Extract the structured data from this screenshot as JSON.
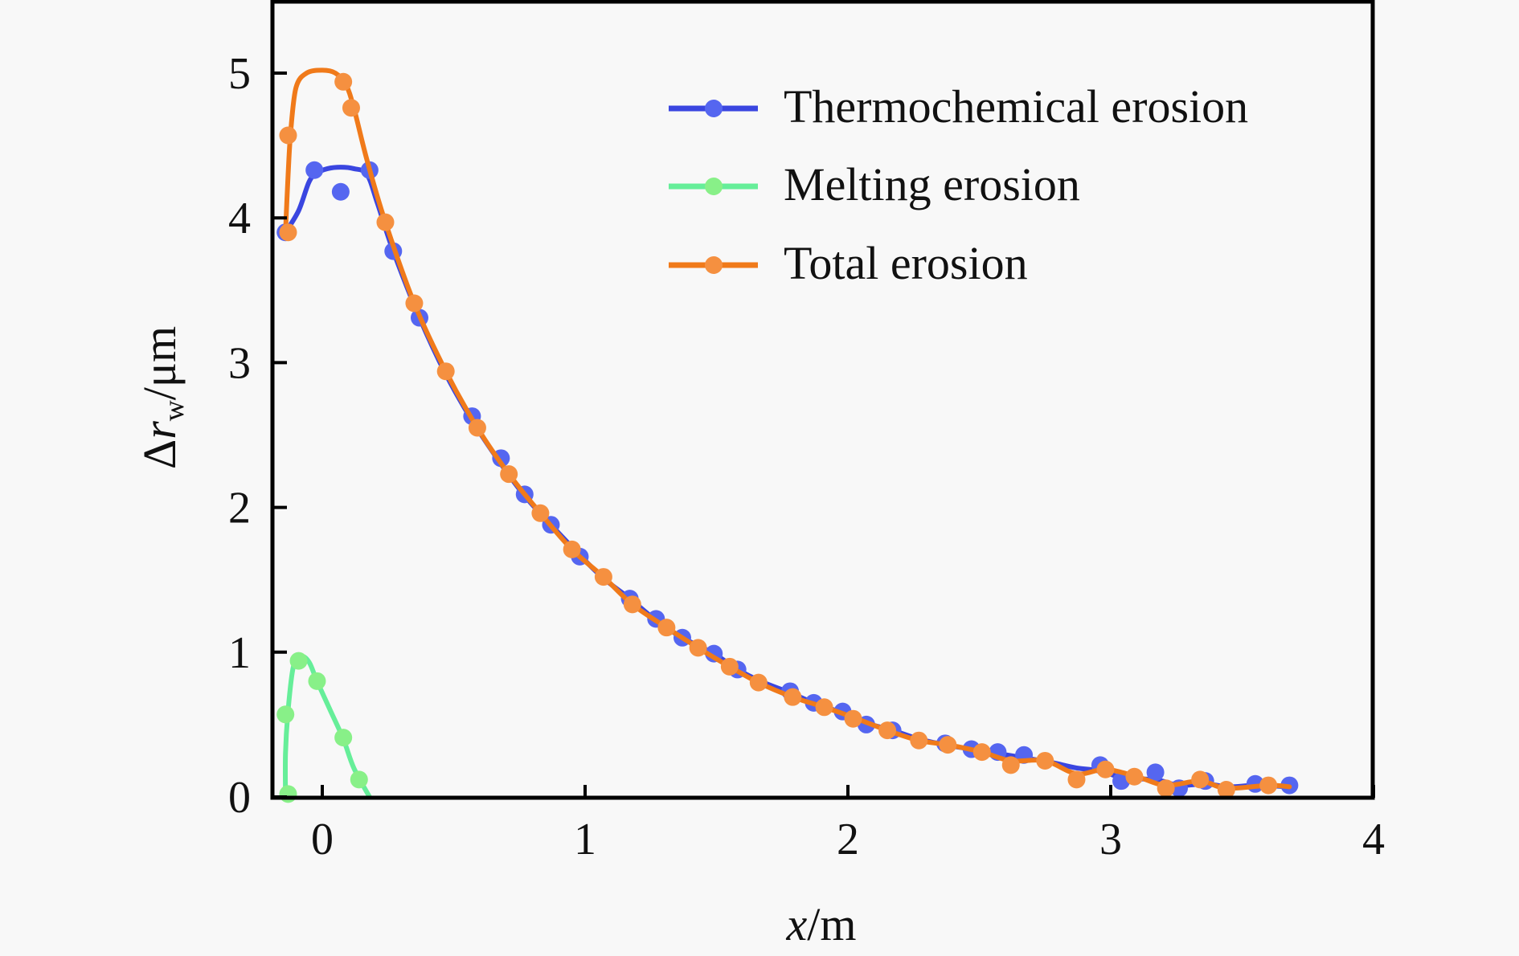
{
  "chart_data": {
    "type": "line",
    "title": "",
    "xlabel": "x/m",
    "xlabel_parts": {
      "var": "x",
      "unit": "/m"
    },
    "ylabel": "Δr_w/μm",
    "ylabel_parts": {
      "delta": "Δ",
      "var": "r",
      "sub": "w",
      "unit": "/μm"
    },
    "xlim": [
      -0.2,
      4
    ],
    "ylim": [
      0,
      5.5
    ],
    "xticks": [
      0,
      1,
      2,
      3,
      4
    ],
    "xtick_labels": [
      "0",
      "1",
      "2",
      "3",
      "4"
    ],
    "yticks": [
      0,
      1,
      2,
      3,
      4,
      5
    ],
    "ytick_labels": [
      "0",
      "1",
      "2",
      "3",
      "4",
      "5"
    ],
    "grid": false,
    "legend_position": "top-right",
    "series": [
      {
        "name": "Thermochemical erosion",
        "line_color": "#3a46e0",
        "marker_color": "#5566f0",
        "curve": [
          [
            -0.14,
            3.9
          ],
          [
            -0.09,
            4.05
          ],
          [
            -0.05,
            4.25
          ],
          [
            -0.02,
            4.31
          ],
          [
            0.02,
            4.34
          ],
          [
            0.07,
            4.35
          ],
          [
            0.12,
            4.34
          ],
          [
            0.17,
            4.3
          ],
          [
            0.21,
            4.1
          ],
          [
            0.27,
            3.77
          ],
          [
            0.37,
            3.31
          ],
          [
            0.47,
            2.92
          ],
          [
            0.57,
            2.6
          ],
          [
            0.68,
            2.3
          ],
          [
            0.77,
            2.08
          ],
          [
            0.87,
            1.88
          ],
          [
            0.98,
            1.67
          ],
          [
            1.07,
            1.51
          ],
          [
            1.17,
            1.37
          ],
          [
            1.27,
            1.22
          ],
          [
            1.37,
            1.1
          ],
          [
            1.49,
            0.99
          ],
          [
            1.58,
            0.88
          ],
          [
            1.68,
            0.79
          ],
          [
            1.78,
            0.72
          ],
          [
            1.87,
            0.65
          ],
          [
            1.98,
            0.58
          ],
          [
            2.07,
            0.51
          ],
          [
            2.17,
            0.46
          ],
          [
            2.27,
            0.4
          ],
          [
            2.37,
            0.36
          ],
          [
            2.47,
            0.33
          ],
          [
            2.57,
            0.3
          ],
          [
            2.67,
            0.27
          ],
          [
            2.77,
            0.24
          ],
          [
            2.87,
            0.2
          ],
          [
            2.96,
            0.18
          ],
          [
            3.05,
            0.13
          ],
          [
            3.17,
            0.12
          ],
          [
            3.26,
            0.08
          ],
          [
            3.36,
            0.09
          ],
          [
            3.45,
            0.07
          ],
          [
            3.55,
            0.08
          ],
          [
            3.68,
            0.07
          ]
        ],
        "points": [
          [
            -0.14,
            3.9
          ],
          [
            -0.03,
            4.33
          ],
          [
            0.07,
            4.18
          ],
          [
            0.18,
            4.33
          ],
          [
            0.27,
            3.77
          ],
          [
            0.37,
            3.31
          ],
          [
            0.57,
            2.63
          ],
          [
            0.68,
            2.34
          ],
          [
            0.77,
            2.09
          ],
          [
            0.87,
            1.88
          ],
          [
            0.98,
            1.66
          ],
          [
            1.17,
            1.37
          ],
          [
            1.27,
            1.23
          ],
          [
            1.37,
            1.1
          ],
          [
            1.49,
            0.99
          ],
          [
            1.58,
            0.88
          ],
          [
            1.78,
            0.73
          ],
          [
            1.87,
            0.65
          ],
          [
            1.98,
            0.59
          ],
          [
            2.07,
            0.5
          ],
          [
            2.17,
            0.46
          ],
          [
            2.37,
            0.37
          ],
          [
            2.47,
            0.33
          ],
          [
            2.57,
            0.31
          ],
          [
            2.67,
            0.29
          ],
          [
            2.96,
            0.22
          ],
          [
            3.04,
            0.11
          ],
          [
            3.17,
            0.17
          ],
          [
            3.26,
            0.06
          ],
          [
            3.36,
            0.11
          ],
          [
            3.55,
            0.09
          ],
          [
            3.68,
            0.08
          ]
        ]
      },
      {
        "name": "Melting erosion",
        "line_color": "#66ee99",
        "marker_color": "#88f088",
        "curve": [
          [
            -0.14,
            0.0
          ],
          [
            -0.14,
            0.3
          ],
          [
            -0.13,
            0.6
          ],
          [
            -0.11,
            0.9
          ],
          [
            -0.08,
            0.97
          ],
          [
            -0.05,
            0.93
          ],
          [
            -0.02,
            0.8
          ],
          [
            0.03,
            0.6
          ],
          [
            0.08,
            0.4
          ],
          [
            0.12,
            0.2
          ],
          [
            0.18,
            0.0
          ]
        ],
        "points": [
          [
            -0.13,
            0.02
          ],
          [
            -0.14,
            0.57
          ],
          [
            -0.09,
            0.94
          ],
          [
            -0.02,
            0.8
          ],
          [
            0.08,
            0.41
          ],
          [
            0.14,
            0.12
          ]
        ]
      },
      {
        "name": "Total erosion",
        "line_color": "#f07a1a",
        "marker_color": "#f59040",
        "curve": [
          [
            -0.14,
            3.9
          ],
          [
            -0.13,
            4.3
          ],
          [
            -0.12,
            4.6
          ],
          [
            -0.1,
            4.9
          ],
          [
            -0.06,
            5.0
          ],
          [
            0.0,
            5.02
          ],
          [
            0.05,
            5.0
          ],
          [
            0.09,
            4.92
          ],
          [
            0.12,
            4.76
          ],
          [
            0.17,
            4.4
          ],
          [
            0.24,
            3.97
          ],
          [
            0.35,
            3.41
          ],
          [
            0.47,
            2.94
          ],
          [
            0.59,
            2.55
          ],
          [
            0.71,
            2.23
          ],
          [
            0.83,
            1.96
          ],
          [
            0.95,
            1.71
          ],
          [
            1.07,
            1.52
          ],
          [
            1.18,
            1.33
          ],
          [
            1.31,
            1.17
          ],
          [
            1.43,
            1.03
          ],
          [
            1.55,
            0.9
          ],
          [
            1.66,
            0.79
          ],
          [
            1.79,
            0.69
          ],
          [
            1.91,
            0.62
          ],
          [
            2.02,
            0.55
          ],
          [
            2.15,
            0.46
          ],
          [
            2.27,
            0.39
          ],
          [
            2.38,
            0.36
          ],
          [
            2.51,
            0.31
          ],
          [
            2.62,
            0.25
          ],
          [
            2.75,
            0.25
          ],
          [
            2.87,
            0.16
          ],
          [
            2.98,
            0.19
          ],
          [
            3.1,
            0.14
          ],
          [
            3.21,
            0.08
          ],
          [
            3.34,
            0.11
          ],
          [
            3.44,
            0.06
          ],
          [
            3.6,
            0.08
          ],
          [
            3.68,
            0.07
          ]
        ],
        "points": [
          [
            -0.13,
            3.9
          ],
          [
            -0.13,
            4.57
          ],
          [
            0.08,
            4.94
          ],
          [
            0.11,
            4.76
          ],
          [
            0.24,
            3.97
          ],
          [
            0.35,
            3.41
          ],
          [
            0.47,
            2.94
          ],
          [
            0.59,
            2.55
          ],
          [
            0.71,
            2.23
          ],
          [
            0.83,
            1.96
          ],
          [
            0.95,
            1.71
          ],
          [
            1.07,
            1.52
          ],
          [
            1.18,
            1.33
          ],
          [
            1.31,
            1.17
          ],
          [
            1.43,
            1.03
          ],
          [
            1.55,
            0.9
          ],
          [
            1.66,
            0.79
          ],
          [
            1.79,
            0.69
          ],
          [
            1.91,
            0.62
          ],
          [
            2.02,
            0.54
          ],
          [
            2.15,
            0.46
          ],
          [
            2.27,
            0.39
          ],
          [
            2.38,
            0.36
          ],
          [
            2.51,
            0.31
          ],
          [
            2.62,
            0.22
          ],
          [
            2.75,
            0.25
          ],
          [
            2.87,
            0.12
          ],
          [
            2.98,
            0.19
          ],
          [
            3.09,
            0.14
          ],
          [
            3.21,
            0.06
          ],
          [
            3.34,
            0.12
          ],
          [
            3.44,
            0.05
          ],
          [
            3.6,
            0.08
          ]
        ]
      }
    ]
  }
}
